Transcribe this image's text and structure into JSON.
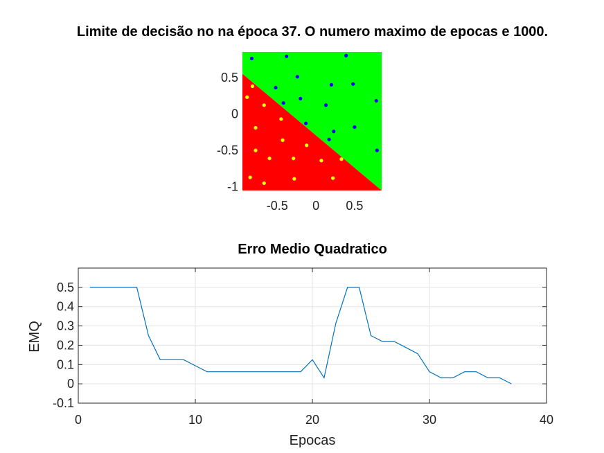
{
  "chart_data": [
    {
      "type": "scatter",
      "title": "Limite de decisão no na época 37. O numero maximo de epocas e 1000.",
      "xlabel": "",
      "ylabel": "",
      "xlim": [
        -0.95,
        0.85
      ],
      "ylim": [
        -1.05,
        0.85
      ],
      "xticks": [
        "-0.5",
        "0",
        "0.5"
      ],
      "xtick_values": [
        -0.5,
        0,
        0.5
      ],
      "yticks": [
        "0.5",
        "0",
        "-0.5",
        "-1"
      ],
      "ytick_values": [
        0.5,
        0,
        -0.5,
        -1
      ],
      "region_colors": {
        "class_above": "#00ff00",
        "class_below": "#ff0000"
      },
      "decision_boundary": [
        [
          -0.95,
          0.55
        ],
        [
          0.85,
          -1.05
        ]
      ],
      "series": [
        {
          "color": "#0000ff",
          "points": [
            [
              -0.83,
              0.76
            ],
            [
              -0.38,
              0.79
            ],
            [
              0.39,
              0.8
            ],
            [
              -0.52,
              0.36
            ],
            [
              -0.24,
              0.51
            ],
            [
              0.2,
              0.4
            ],
            [
              0.48,
              0.41
            ],
            [
              -0.2,
              0.21
            ],
            [
              -0.42,
              0.15
            ],
            [
              0.13,
              0.12
            ],
            [
              0.78,
              0.18
            ],
            [
              -0.13,
              -0.13
            ],
            [
              0.23,
              -0.24
            ],
            [
              0.5,
              -0.18
            ],
            [
              0.17,
              -0.35
            ],
            [
              0.79,
              -0.5
            ]
          ]
        },
        {
          "color": "#ffff00",
          "points": [
            [
              -0.82,
              0.38
            ],
            [
              -0.89,
              0.23
            ],
            [
              -0.67,
              0.12
            ],
            [
              -0.78,
              -0.19
            ],
            [
              -0.45,
              -0.07
            ],
            [
              -0.78,
              -0.5
            ],
            [
              -0.43,
              -0.36
            ],
            [
              -0.6,
              -0.61
            ],
            [
              -0.29,
              -0.61
            ],
            [
              -0.12,
              -0.43
            ],
            [
              0.07,
              -0.64
            ],
            [
              0.33,
              -0.62
            ],
            [
              -0.85,
              -0.87
            ],
            [
              -0.67,
              -0.95
            ],
            [
              -0.28,
              -0.89
            ],
            [
              0.22,
              -0.88
            ]
          ]
        }
      ]
    },
    {
      "type": "line",
      "title": "Erro Medio Quadratico",
      "xlabel": "Epocas",
      "ylabel": "EMQ",
      "xlim": [
        0,
        40
      ],
      "ylim": [
        -0.1,
        0.6
      ],
      "xticks": [
        "0",
        "10",
        "20",
        "30",
        "40"
      ],
      "xtick_values": [
        0,
        10,
        20,
        30,
        40
      ],
      "yticks": [
        "0.5",
        "0.4",
        "0.3",
        "0.2",
        "0.1",
        "0",
        "-0.1"
      ],
      "ytick_values": [
        0.5,
        0.4,
        0.3,
        0.2,
        0.1,
        0,
        -0.1
      ],
      "grid": true,
      "line_color": "#0072bd",
      "series": [
        {
          "x": [
            1,
            2,
            3,
            4,
            5,
            6,
            7,
            8,
            9,
            10,
            11,
            12,
            13,
            14,
            15,
            16,
            17,
            18,
            19,
            20,
            21,
            22,
            23,
            24,
            25,
            26,
            27,
            28,
            29,
            30,
            31,
            32,
            33,
            34,
            35,
            36,
            37
          ],
          "values": [
            0.5,
            0.5,
            0.5,
            0.5,
            0.5,
            0.25,
            0.125,
            0.125,
            0.125,
            0.094,
            0.0625,
            0.0625,
            0.0625,
            0.0625,
            0.0625,
            0.0625,
            0.0625,
            0.0625,
            0.0625,
            0.125,
            0.031,
            0.313,
            0.5,
            0.5,
            0.25,
            0.219,
            0.219,
            0.188,
            0.156,
            0.0625,
            0.031,
            0.031,
            0.0625,
            0.0625,
            0.031,
            0.031,
            0.0
          ]
        }
      ]
    }
  ]
}
